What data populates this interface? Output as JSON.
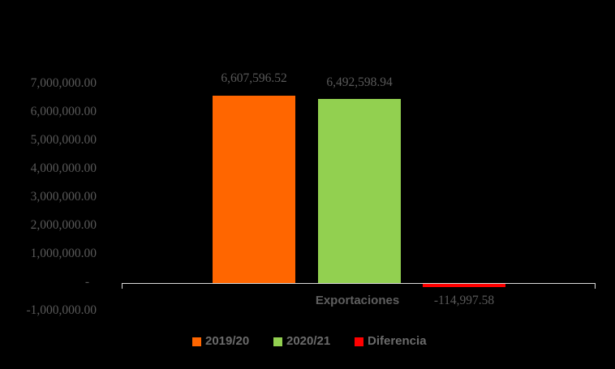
{
  "chart_data": {
    "type": "bar",
    "title": "",
    "categories": [
      "Exportaciones"
    ],
    "series": [
      {
        "name": "2019/20",
        "values": [
          6607596.52
        ],
        "label": "6,607,596.52",
        "color": "#FF6600"
      },
      {
        "name": "2020/21",
        "values": [
          6492598.94
        ],
        "label": "6,492,598.94",
        "color": "#92D050"
      },
      {
        "name": "Diferencia",
        "values": [
          -114997.58
        ],
        "label": "-114,997.58",
        "color": "#FF0000"
      }
    ],
    "ylim": [
      -1000000,
      7000000
    ],
    "ytick_interval": 1000000,
    "yticks": [
      "7,000,000.00",
      "6,000,000.00",
      "5,000,000.00",
      "4,000,000.00",
      "3,000,000.00",
      "2,000,000.00",
      "1,000,000.00",
      "-",
      "-1,000,000.00"
    ],
    "grid": false,
    "legend_position": "bottom",
    "colors": {
      "background": "#000000",
      "axis_line": "#D9D9D9",
      "tick_text": "#595959",
      "data_label_text": "#595959",
      "legend_text": "#6B6B6B"
    }
  }
}
